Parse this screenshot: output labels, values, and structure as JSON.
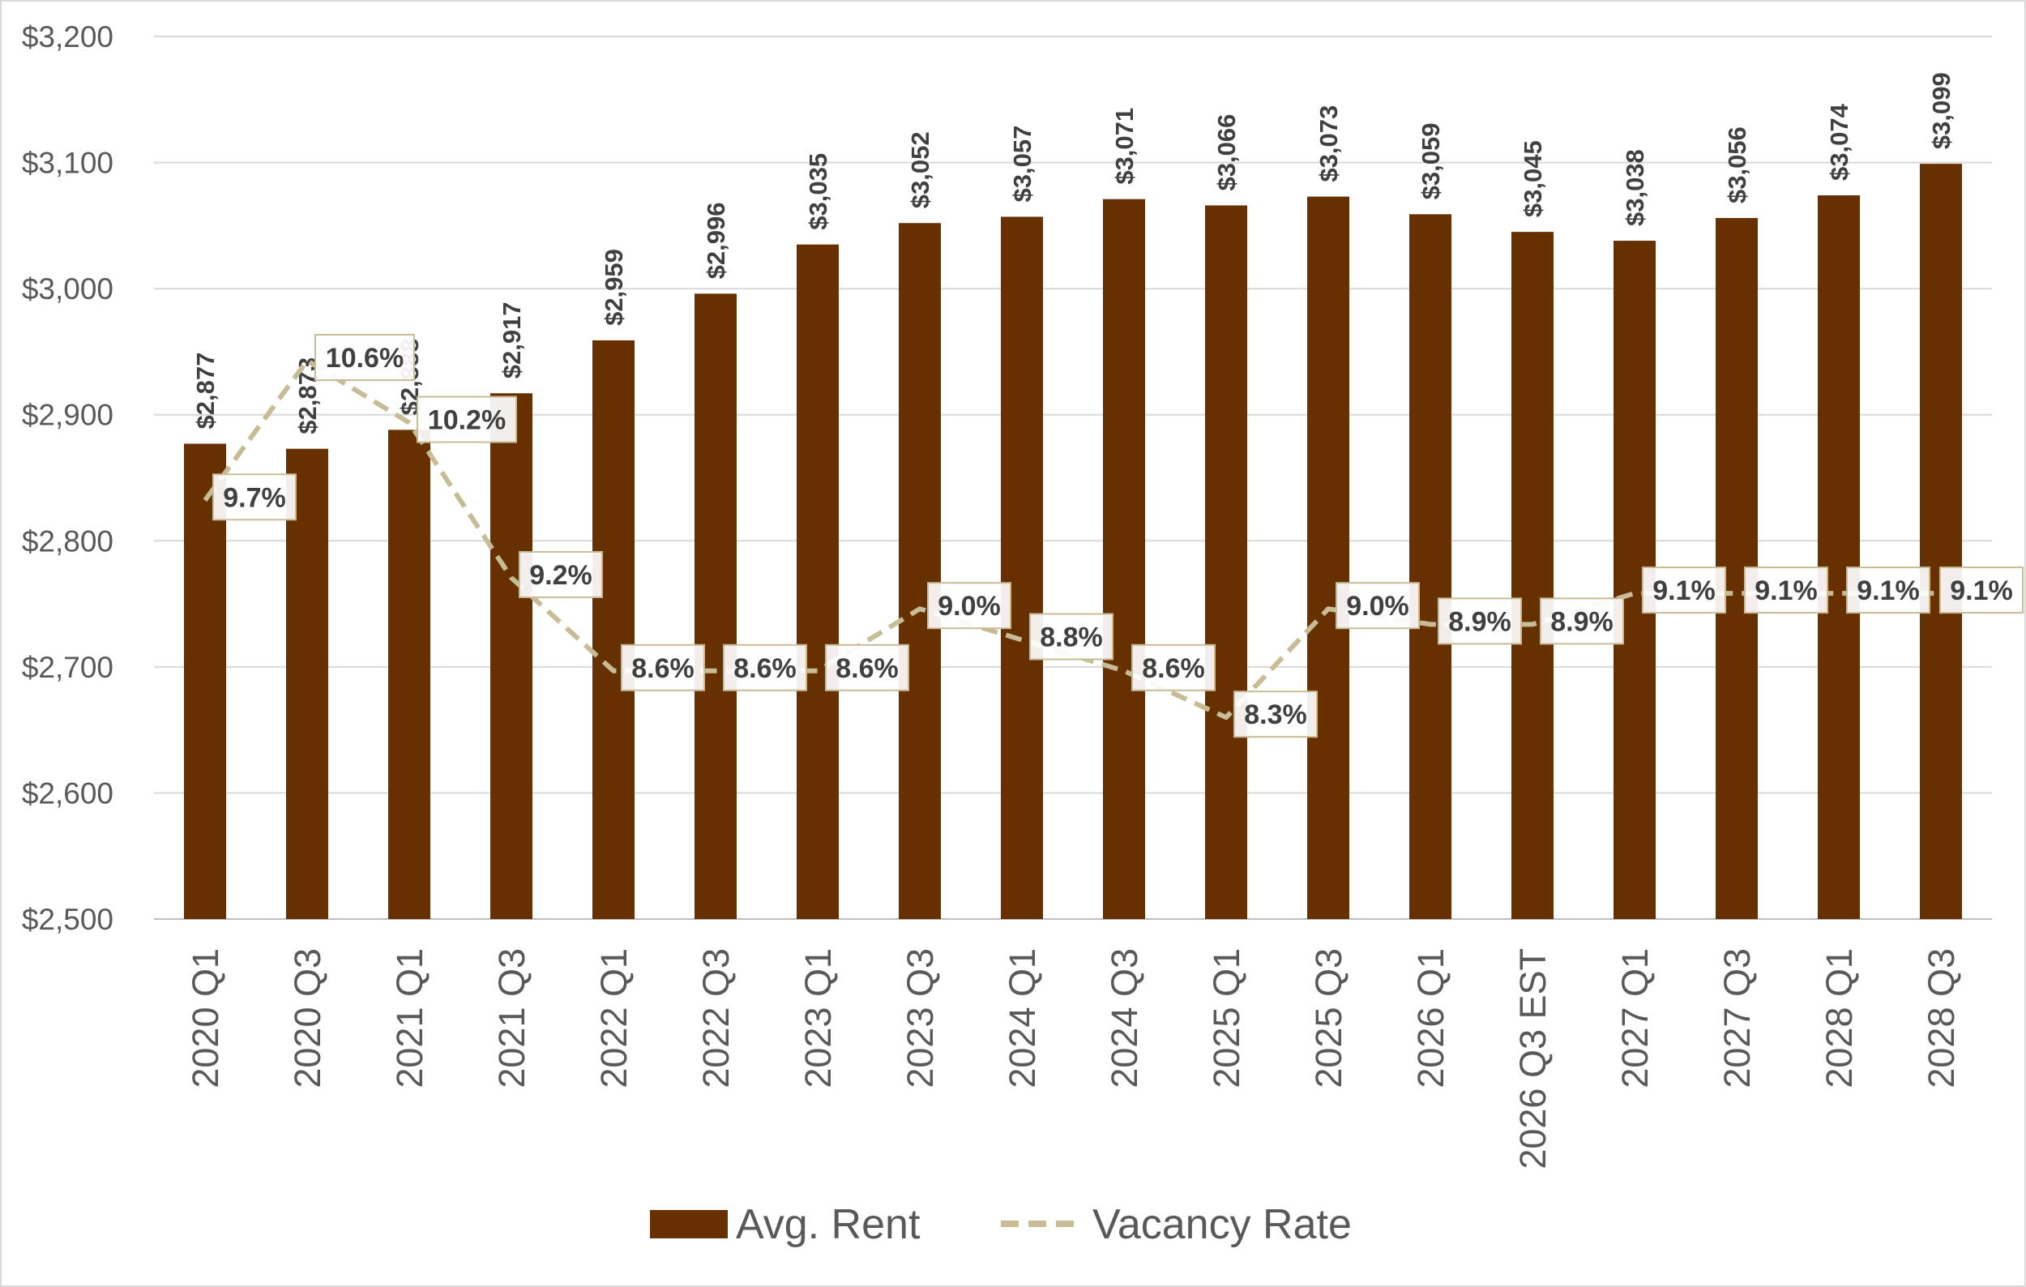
{
  "chart_data": {
    "type": "bar",
    "categories": [
      "2020 Q1",
      "2020 Q3",
      "2021 Q1",
      "2021 Q3",
      "2022 Q1",
      "2022 Q3",
      "2023 Q1",
      "2023 Q3",
      "2024 Q1",
      "2024 Q3",
      "2025 Q1",
      "2025 Q3",
      "2026 Q1",
      "2026 Q3 EST",
      "2027 Q1",
      "2027 Q3",
      "2028 Q1",
      "2028 Q3"
    ],
    "ylim": [
      2500,
      3200
    ],
    "yticks": [
      2500,
      2600,
      2700,
      2800,
      2900,
      3000,
      3100,
      3200
    ],
    "ytick_labels": [
      "$2,500",
      "$2,600",
      "$2,700",
      "$2,800",
      "$2,900",
      "$3,000",
      "$3,100",
      "$3,200"
    ],
    "grid": "horizontal",
    "legend_position": "bottom",
    "series": [
      {
        "name": "Avg. Rent",
        "type": "bar",
        "color": "#663000",
        "values": [
          2877,
          2873,
          2888,
          2917,
          2959,
          2996,
          3035,
          3052,
          3057,
          3071,
          3066,
          3073,
          3059,
          3045,
          3038,
          3056,
          3074,
          3099
        ],
        "labels": [
          "$2,877",
          "$2,873",
          "$2,888",
          "$2,917",
          "$2,959",
          "$2,996",
          "$3,035",
          "$3,052",
          "$3,057",
          "$3,071",
          "$3,066",
          "$3,073",
          "$3,059",
          "$3,045",
          "$3,038",
          "$3,056",
          "$3,074",
          "$3,099"
        ]
      },
      {
        "name": "Vacancy Rate",
        "type": "line",
        "style": "dashed",
        "color": "#c8bc96",
        "values": [
          9.7,
          10.6,
          10.2,
          9.2,
          8.6,
          8.6,
          8.6,
          9.0,
          8.8,
          8.6,
          8.3,
          9.0,
          8.9,
          8.9,
          9.1,
          9.1,
          9.1,
          9.1
        ],
        "labels": [
          "9.7%",
          "10.6%",
          "10.2%",
          "9.2%",
          "8.6%",
          "8.6%",
          "8.6%",
          "9.0%",
          "8.8%",
          "8.6%",
          "8.3%",
          "9.0%",
          "8.9%",
          "8.9%",
          "9.1%",
          "9.1%",
          "9.1%",
          "9.1%"
        ]
      }
    ]
  }
}
